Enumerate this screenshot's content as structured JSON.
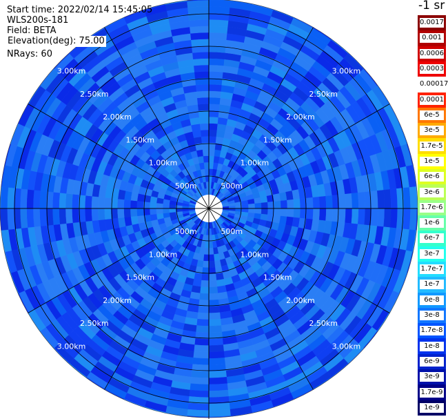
{
  "info": {
    "start_time": "Start time: 2022/02/14 15:45:05",
    "instrument": "WLS200s-181",
    "field": "Field: BETA",
    "elevation": "Elevation(deg): 75.00",
    "nrays": "NRays: 60"
  },
  "chart_data": {
    "type": "heatmap",
    "projection": "polar",
    "title": "",
    "field": "BETA",
    "n_rays": 60,
    "elevation_deg": 75.0,
    "range_rings_labels": [
      "500m",
      "1.00km",
      "1.50km",
      "2.00km",
      "2.50km",
      "3.00km"
    ],
    "range_rings_km": [
      0.5,
      1.0,
      1.5,
      2.0,
      2.5,
      3.0
    ],
    "azimuth_spokes_deg": [
      0,
      30,
      60,
      90,
      120,
      150,
      180,
      210,
      240,
      270,
      300,
      330
    ],
    "colorbar": {
      "title": "-1 sr",
      "labels": [
        "0.0017",
        "0.001",
        "0.0006",
        "0.0003",
        "0.00017",
        "0.0001",
        "6e-5",
        "3e-5",
        "1.7e-5",
        "1e-5",
        "6e-6",
        "3e-6",
        "1.7e-6",
        "1e-6",
        "6e-7",
        "3e-7",
        "1.7e-7",
        "1e-7",
        "6e-8",
        "3e-8",
        "1.7e-8",
        "1e-8",
        "6e-9",
        "3e-9",
        "1.7e-9",
        "1e-9"
      ],
      "colors": [
        "#8b0000",
        "#b00000",
        "#d00000",
        "#ee0000",
        "#ffffff",
        "#ff2200",
        "#ff7700",
        "#ffaa00",
        "#ffdd00",
        "#ffff00",
        "#ddff22",
        "#bbff55",
        "#99ff88",
        "#66ffaa",
        "#33ffcc",
        "#22ffee",
        "#22ddff",
        "#22bbff",
        "#1199ff",
        "#1177ff",
        "#0055ff",
        "#0033ee",
        "#0022cc",
        "#0011aa",
        "#000088",
        "#000066"
      ]
    }
  }
}
